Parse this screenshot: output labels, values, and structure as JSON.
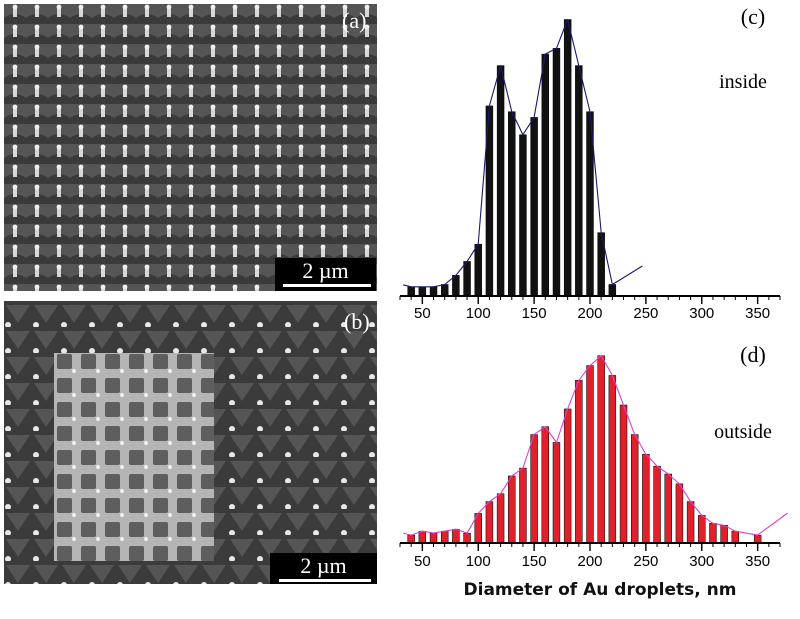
{
  "panels": {
    "a": {
      "letter": "(a)",
      "scale_label": "2 µm"
    },
    "b": {
      "letter": "(b)",
      "scale_label": "2 µm"
    }
  },
  "chart_data": [
    {
      "type": "bar",
      "panel": "(c)",
      "annotation": "inside",
      "bar_color": "#111111",
      "fit_color": "#1a1a6e",
      "xlim": [
        30,
        370
      ],
      "x_ticks": [
        50,
        100,
        150,
        200,
        250,
        300,
        350
      ],
      "bin_width": 10,
      "x": [
        40,
        50,
        60,
        70,
        80,
        90,
        100,
        110,
        120,
        130,
        140,
        150,
        160,
        170,
        180,
        190,
        200,
        210,
        220
      ],
      "values": [
        8,
        8,
        8,
        10,
        18,
        30,
        45,
        165,
        200,
        160,
        140,
        155,
        210,
        215,
        240,
        200,
        160,
        55,
        10
      ],
      "ymax": 250
    },
    {
      "type": "bar",
      "panel": "(d)",
      "annotation": "outside",
      "bar_color": "#e0202a",
      "fit_color": "#e040c8",
      "xlim": [
        30,
        370
      ],
      "x_ticks": [
        50,
        100,
        150,
        200,
        250,
        300,
        350
      ],
      "bin_width": 10,
      "x": [
        40,
        50,
        60,
        70,
        80,
        90,
        100,
        110,
        120,
        130,
        140,
        150,
        160,
        170,
        180,
        190,
        200,
        210,
        220,
        230,
        240,
        250,
        260,
        270,
        280,
        290,
        300,
        310,
        320,
        330,
        350
      ],
      "values": [
        8,
        12,
        10,
        12,
        14,
        10,
        30,
        42,
        50,
        68,
        76,
        110,
        118,
        102,
        136,
        165,
        180,
        190,
        170,
        140,
        110,
        90,
        78,
        70,
        60,
        42,
        28,
        20,
        18,
        12,
        8
      ],
      "ymax": 210
    }
  ],
  "x_axis_title": "Diameter of Au droplets, nm"
}
